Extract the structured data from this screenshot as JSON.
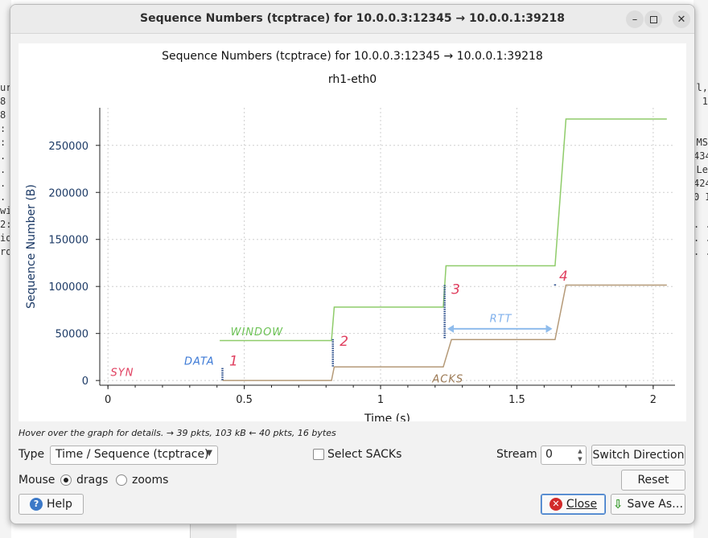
{
  "window": {
    "title": "Sequence Numbers (tcptrace) for 10.0.0.3:12345 → 10.0.0.1:39218",
    "controls": [
      "minimize",
      "maximize",
      "close"
    ]
  },
  "background": {
    "left_fragments": [
      "ur",
      "8",
      "8",
      ":",
      ":",
      ".",
      ".",
      ".",
      ".",
      "wi",
      "2:",
      "io",
      "ro"
    ],
    "right_fragments": [
      "l,",
      "1",
      "",
      "",
      "MS",
      "434",
      "Le",
      "424",
      "0 I",
      "",
      ". .",
      ". .",
      ". ."
    ]
  },
  "chart_data": {
    "type": "line",
    "title": "Sequence Numbers (tcptrace) for 10.0.0.3:12345 → 10.0.0.1:39218",
    "subtitle": "rh1-eth0",
    "xlabel": "Time (s)",
    "ylabel": "Sequence Number (B)",
    "xlim": [
      -0.03,
      2.08
    ],
    "ylim": [
      -5000,
      290000
    ],
    "xticks": [
      0,
      0.5,
      1,
      1.5,
      2
    ],
    "xtick_labels": [
      "0",
      "0.5",
      "1",
      "1.5",
      "2"
    ],
    "yticks": [
      0,
      50000,
      100000,
      150000,
      200000,
      250000
    ],
    "ytick_labels": [
      "0",
      "50000",
      "100000",
      "150000",
      "200000",
      "250000"
    ],
    "grid": true,
    "colors": {
      "window": "#8fcc6a",
      "ack": "#b59a78",
      "data": "#2b4e8c"
    },
    "series": [
      {
        "name": "",
        "role": "window",
        "x": [
          0.41,
          0.82,
          0.83,
          1.23,
          1.24,
          1.64,
          1.68,
          2.05
        ],
        "y": [
          42500,
          42500,
          78000,
          78000,
          122000,
          122000,
          278000,
          278000
        ]
      },
      {
        "name": "",
        "role": "ack",
        "x": [
          0.42,
          0.82,
          0.83,
          1.23,
          1.26,
          1.64,
          1.68,
          2.05
        ],
        "y": [
          0,
          0,
          14500,
          14500,
          43500,
          43500,
          101500,
          101500
        ]
      }
    ],
    "data_bursts": [
      {
        "x": 0.42,
        "y0": 500,
        "y1": 13500
      },
      {
        "x": 0.825,
        "y0": 15000,
        "y1": 44000
      },
      {
        "x": 1.235,
        "y0": 45000,
        "y1": 101500
      },
      {
        "x": 1.64,
        "y0": 101000,
        "y1": 102500
      }
    ],
    "annotations": [
      {
        "text": "SYN",
        "x": 0.01,
        "y": 5000,
        "color": "#e04060"
      },
      {
        "text": "DATA",
        "x": 0.28,
        "y": 17000,
        "color": "#3d7ad6"
      },
      {
        "text": "1",
        "x": 0.445,
        "y": 16000,
        "color": "#e04060"
      },
      {
        "text": "WINDOW",
        "x": 0.45,
        "y": 48000,
        "color": "#6cc255"
      },
      {
        "text": "2",
        "x": 0.85,
        "y": 37000,
        "color": "#e04060"
      },
      {
        "text": "ACKS",
        "x": 1.19,
        "y": -2000,
        "color": "#9c7a55"
      },
      {
        "text": "3",
        "x": 1.26,
        "y": 92000,
        "color": "#e04060"
      },
      {
        "text": "RTT",
        "x": 1.4,
        "y": 62000,
        "color": "#7fb0ec"
      },
      {
        "text": "4",
        "x": 1.655,
        "y": 106000,
        "color": "#e04060"
      }
    ],
    "rtt_arrow": {
      "x0": 1.245,
      "x1": 1.63,
      "y": 55000,
      "color": "#8fbcec"
    }
  },
  "status": {
    "hover_text": "Hover over the graph for details. → 39 pkts, 103 kB ← 40 pkts, 16 bytes"
  },
  "controls": {
    "type_label": "Type",
    "type_value": "Time / Sequence (tcptrace)",
    "select_sacks_label": "Select SACKs",
    "select_sacks_checked": false,
    "stream_label": "Stream",
    "stream_value": "0",
    "switch_direction_label": "Switch Direction",
    "mouse_label": "Mouse",
    "mouse_drags_label": "drags",
    "mouse_zooms_label": "zooms",
    "reset_label": "Reset",
    "help_label": "Help",
    "close_label": "Close",
    "save_as_label": "Save As…"
  }
}
